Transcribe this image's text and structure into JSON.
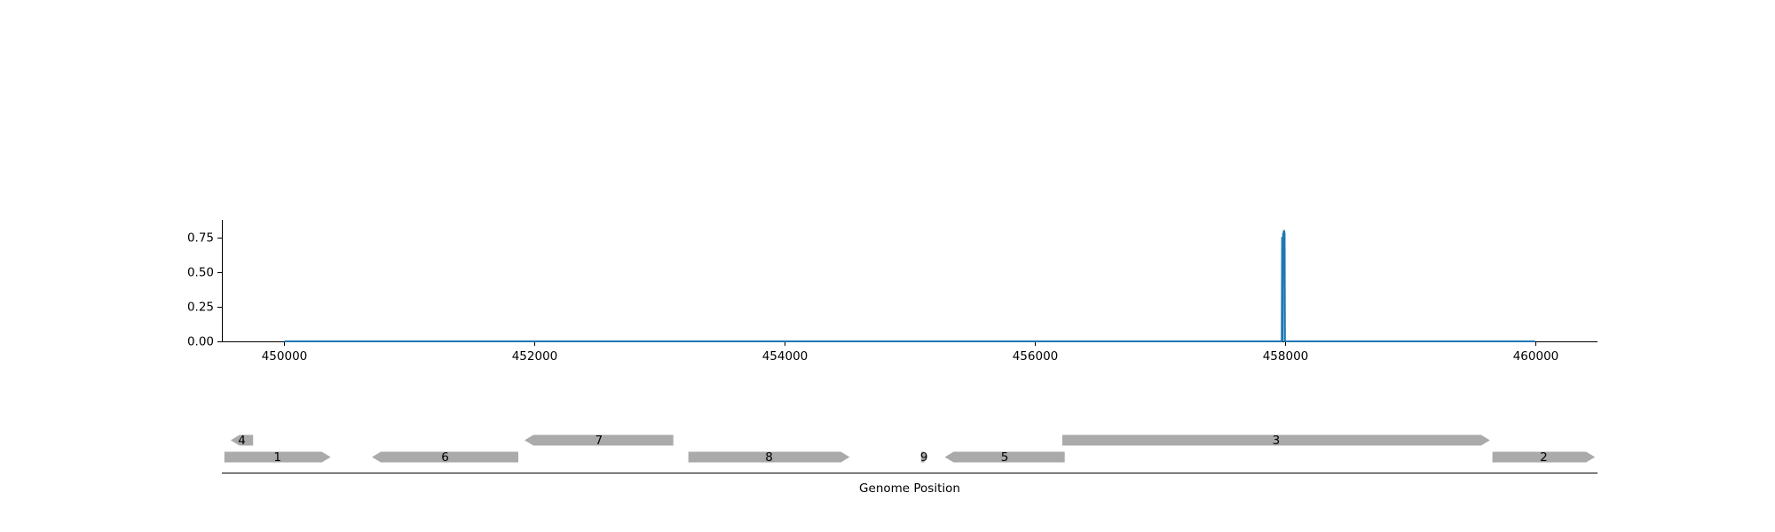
{
  "chart_data": [
    {
      "type": "line",
      "title": "",
      "xlabel": "",
      "ylabel": "",
      "xlim": [
        449500,
        460500
      ],
      "ylim": [
        0,
        0.88
      ],
      "x_ticks": [
        450000,
        452000,
        454000,
        456000,
        458000,
        460000
      ],
      "x_tick_labels": [
        "450000",
        "452000",
        "454000",
        "456000",
        "458000",
        "460000"
      ],
      "y_ticks": [
        0.0,
        0.25,
        0.5,
        0.75
      ],
      "y_tick_labels": [
        "0.00",
        "0.25",
        "0.50",
        "0.75"
      ],
      "grid": false,
      "line_color": "#1f77b4",
      "series": [
        {
          "x": [
            450000,
            457975,
            457978,
            457980,
            457983,
            457986,
            457989,
            457992,
            457995,
            457998,
            458001,
            460000
          ],
          "y": [
            0,
            0,
            0.75,
            0.75,
            0.0,
            0.78,
            0.78,
            0.8,
            0.8,
            0.78,
            0,
            0
          ]
        }
      ]
    },
    {
      "type": "gene-track",
      "xlabel": "Genome Position",
      "xlim": [
        449500,
        460500
      ],
      "gene_color": "#aaaaaa",
      "genes": [
        {
          "label": "1",
          "start": 449520,
          "end": 450370,
          "strand": "+",
          "row": 0
        },
        {
          "label": "6",
          "start": 450700,
          "end": 451870,
          "strand": "-",
          "row": 0
        },
        {
          "label": "8",
          "start": 453230,
          "end": 454520,
          "strand": "+",
          "row": 0
        },
        {
          "label": "9",
          "start": 455090,
          "end": 455140,
          "strand": "+",
          "row": 0
        },
        {
          "label": "5",
          "start": 455280,
          "end": 456240,
          "strand": "-",
          "row": 0
        },
        {
          "label": "2",
          "start": 459660,
          "end": 460480,
          "strand": "+",
          "row": 0
        },
        {
          "label": "4",
          "start": 449570,
          "end": 449750,
          "strand": "-",
          "row": 1
        },
        {
          "label": "7",
          "start": 451920,
          "end": 453110,
          "strand": "-",
          "row": 1
        },
        {
          "label": "3",
          "start": 456220,
          "end": 459640,
          "strand": "+",
          "row": 1
        }
      ]
    }
  ]
}
